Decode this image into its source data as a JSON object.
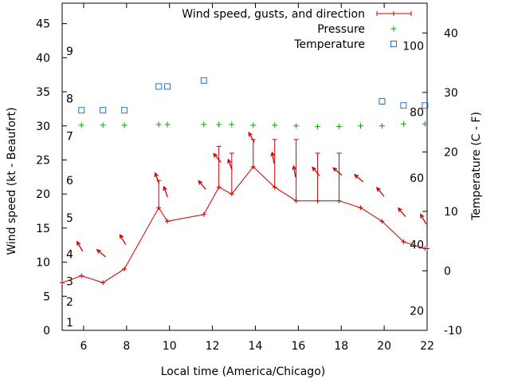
{
  "chart_data": {
    "type": "line",
    "xlabel": "Local time (America/Chicago)",
    "ylabel": "Wind speed (kt - Beaufort)",
    "y2label": "Temperature (C - F)",
    "xlim": [
      5,
      22
    ],
    "ylim": [
      0,
      48
    ],
    "y2lim": [
      -10,
      45
    ],
    "xticks": [
      6,
      8,
      10,
      12,
      14,
      16,
      18,
      20,
      22
    ],
    "yticks": [
      0,
      5,
      10,
      15,
      20,
      25,
      30,
      35,
      40,
      45
    ],
    "y2ticks": [
      -10,
      0,
      10,
      20,
      30,
      40
    ],
    "legend_position": "top-right",
    "grid": false,
    "colors": {
      "wind": "#cc0000",
      "pressure": "#00aa00",
      "temperature": "#1f77c4"
    },
    "beaufort_labels": [
      {
        "label": "1",
        "y": 1.2
      },
      {
        "label": "2",
        "y": 4.2
      },
      {
        "label": "3",
        "y": 7.2
      },
      {
        "label": "4",
        "y": 11.2
      },
      {
        "label": "5",
        "y": 16.5
      },
      {
        "label": "6",
        "y": 22
      },
      {
        "label": "7",
        "y": 28.5
      },
      {
        "label": "8",
        "y": 34
      },
      {
        "label": "9",
        "y": 41
      }
    ],
    "fahrenheit_labels": [
      {
        "label": "20",
        "temp": -6.7
      },
      {
        "label": "40",
        "temp": 4.4
      },
      {
        "label": "60",
        "temp": 15.6
      },
      {
        "label": "80",
        "temp": 26.7
      },
      {
        "label": "100",
        "temp": 37.8
      }
    ],
    "series": [
      {
        "name": "Wind speed, gusts, and direction",
        "x": [
          5.0,
          5.9,
          6.9,
          7.9,
          9.5,
          9.9,
          11.6,
          12.3,
          12.9,
          13.9,
          14.9,
          15.9,
          16.9,
          17.9,
          18.9,
          19.9,
          20.9,
          21.9,
          22.0
        ],
        "values": [
          7,
          8,
          7,
          9,
          18,
          16,
          17,
          21,
          20,
          24,
          21,
          19,
          19,
          19,
          18,
          16,
          13,
          12,
          12
        ],
        "gusts": [
          null,
          null,
          null,
          null,
          22,
          null,
          null,
          27,
          26,
          28,
          28,
          28,
          26,
          26,
          null,
          null,
          null,
          null,
          null
        ],
        "direction_deg": [
          null,
          330,
          310,
          330,
          340,
          340,
          320,
          320,
          340,
          330,
          350,
          350,
          320,
          310,
          310,
          320,
          320,
          330,
          null
        ]
      },
      {
        "name": "Pressure",
        "x": [
          5.9,
          6.9,
          7.9,
          9.5,
          9.9,
          11.6,
          12.3,
          12.9,
          13.9,
          14.9,
          15.9,
          16.9,
          17.9,
          18.9,
          19.9,
          20.9,
          21.9
        ],
        "values": [
          30.1,
          30.1,
          30.1,
          30.2,
          30.2,
          30.2,
          30.2,
          30.2,
          30.1,
          30.1,
          30.0,
          29.9,
          29.9,
          30.0,
          30.0,
          30.3,
          30.3
        ]
      },
      {
        "name": "Temperature",
        "x": [
          5.9,
          6.9,
          7.9,
          9.5,
          9.9,
          11.6,
          19.9,
          20.9,
          21.9
        ],
        "values": [
          27,
          27,
          27,
          31,
          31,
          32,
          28.5,
          27.8,
          27.8
        ]
      }
    ]
  }
}
